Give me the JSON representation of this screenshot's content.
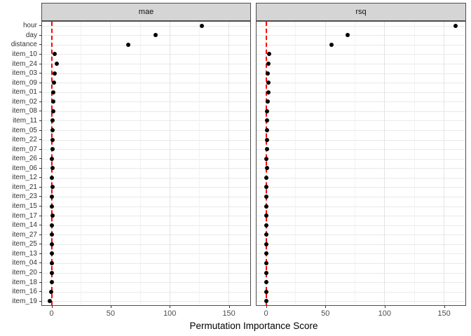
{
  "chart_data": {
    "type": "scatter",
    "title": "",
    "xlabel": "Permutation Importance Score",
    "ylabel": "",
    "legend_position": "none",
    "grid": true,
    "facets": [
      "mae",
      "rsq"
    ],
    "categories": [
      "hour",
      "day",
      "distance",
      "item_10",
      "item_24",
      "item_03",
      "item_09",
      "item_01",
      "item_02",
      "item_08",
      "item_11",
      "item_05",
      "item_22",
      "item_07",
      "item_26",
      "item_06",
      "item_12",
      "item_21",
      "item_23",
      "item_15",
      "item_17",
      "item_14",
      "item_27",
      "item_25",
      "item_13",
      "item_04",
      "item_20",
      "item_18",
      "item_16",
      "item_19"
    ],
    "series": [
      {
        "name": "mae",
        "values": [
          127,
          88,
          65,
          2.7,
          4.2,
          2.7,
          2.1,
          1.5,
          1.2,
          1.5,
          1.0,
          1.0,
          0.7,
          0.9,
          0.5,
          0.7,
          0.5,
          0.6,
          0.5,
          0.5,
          0.6,
          0.4,
          0.5,
          0.4,
          0.5,
          0.3,
          0.2,
          0.3,
          -0.5,
          -1.2
        ]
      },
      {
        "name": "rsq",
        "values": [
          160,
          69,
          55,
          2.8,
          2.2,
          1.2,
          1.8,
          2.2,
          1.2,
          1.0,
          0.8,
          1.0,
          0.6,
          0.8,
          0.4,
          0.6,
          0.5,
          0.5,
          0.4,
          0.4,
          0.5,
          0.3,
          0.4,
          0.3,
          0.4,
          0.3,
          0.2,
          0.2,
          0.1,
          0.0
        ]
      }
    ],
    "x_ticks": [
      0,
      50,
      100,
      150
    ],
    "x_tick_labels": [
      "0",
      "50",
      "100",
      "150"
    ],
    "x_minor_ticks": [
      25,
      75,
      125
    ],
    "xlim": [
      -8,
      168
    ],
    "reference_line": {
      "x": 0,
      "style": "dashed",
      "color": "#ff0000"
    },
    "point_color": "#000000",
    "colors": {
      "strip_background": "#d5d5d5",
      "panel_border": "#4d4d4d",
      "grid_major": "#e4e4e4",
      "grid_minor": "#f2f2f2",
      "axis_text": "#4d4d4d",
      "reference_line": "#ff0000",
      "point": "#000000"
    }
  }
}
